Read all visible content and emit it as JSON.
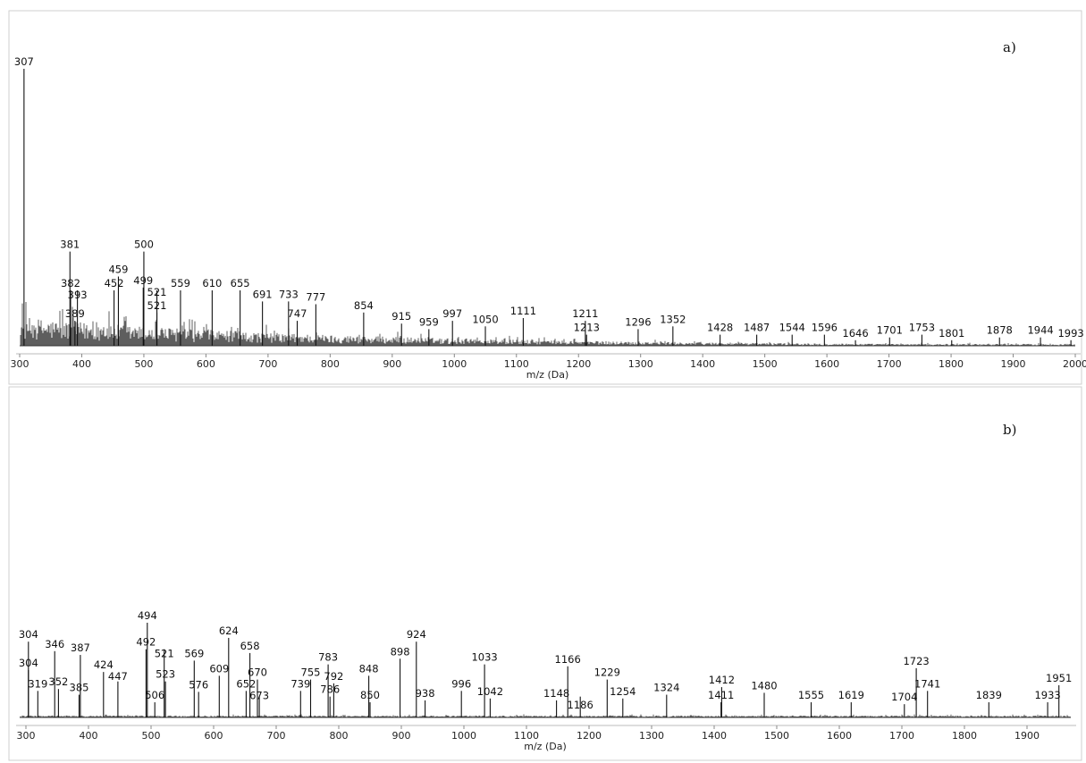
{
  "chart_data": [
    {
      "type": "bar",
      "panel_label": "a)",
      "xlabel": "m/z (Da)",
      "ylabel": "",
      "xlim": [
        300,
        2000
      ],
      "ylim": [
        0,
        100
      ],
      "xticks": [
        300,
        400,
        500,
        600,
        700,
        800,
        900,
        1000,
        1100,
        1200,
        1300,
        1400,
        1500,
        1600,
        1700,
        1800,
        1900,
        2000
      ],
      "tick_labels": [
        "300",
        "400",
        "500",
        "600",
        "700",
        "800",
        "900",
        "1000",
        "1100",
        "1200",
        "1300",
        "1400",
        "1500",
        "1600",
        "1700",
        "1800",
        "1900",
        "2000"
      ],
      "peaks": [
        {
          "mz": 307,
          "y": 100,
          "label": "307"
        },
        {
          "mz": 381,
          "y": 34,
          "label": "381"
        },
        {
          "mz": 382,
          "y": 20,
          "label": "382"
        },
        {
          "mz": 389,
          "y": 9,
          "label": "389"
        },
        {
          "mz": 393,
          "y": 20,
          "label": "393"
        },
        {
          "mz": 452,
          "y": 20,
          "label": "452"
        },
        {
          "mz": 459,
          "y": 25,
          "label": "459"
        },
        {
          "mz": 499,
          "y": 21,
          "label": "499"
        },
        {
          "mz": 500,
          "y": 34,
          "label": "500"
        },
        {
          "mz": 521,
          "y": 20,
          "label": "521"
        },
        {
          "mz": 521,
          "y": 12,
          "label": "521"
        },
        {
          "mz": 559,
          "y": 20,
          "label": "559"
        },
        {
          "mz": 610,
          "y": 20,
          "label": "610"
        },
        {
          "mz": 655,
          "y": 20,
          "label": "655"
        },
        {
          "mz": 691,
          "y": 16,
          "label": "691"
        },
        {
          "mz": 733,
          "y": 16,
          "label": "733"
        },
        {
          "mz": 747,
          "y": 9,
          "label": "747"
        },
        {
          "mz": 777,
          "y": 15,
          "label": "777"
        },
        {
          "mz": 854,
          "y": 12,
          "label": "854"
        },
        {
          "mz": 915,
          "y": 8,
          "label": "915"
        },
        {
          "mz": 959,
          "y": 6,
          "label": "959"
        },
        {
          "mz": 997,
          "y": 9,
          "label": "997"
        },
        {
          "mz": 1050,
          "y": 7,
          "label": "1050"
        },
        {
          "mz": 1111,
          "y": 10,
          "label": "1111"
        },
        {
          "mz": 1211,
          "y": 9,
          "label": "1211"
        },
        {
          "mz": 1213,
          "y": 4,
          "label": "1213"
        },
        {
          "mz": 1296,
          "y": 6,
          "label": "1296"
        },
        {
          "mz": 1352,
          "y": 7,
          "label": "1352"
        },
        {
          "mz": 1428,
          "y": 4,
          "label": "1428"
        },
        {
          "mz": 1487,
          "y": 4,
          "label": "1487"
        },
        {
          "mz": 1544,
          "y": 4,
          "label": "1544"
        },
        {
          "mz": 1596,
          "y": 4,
          "label": "1596"
        },
        {
          "mz": 1646,
          "y": 2,
          "label": "1646"
        },
        {
          "mz": 1701,
          "y": 3,
          "label": "1701"
        },
        {
          "mz": 1753,
          "y": 4,
          "label": "1753"
        },
        {
          "mz": 1801,
          "y": 2,
          "label": "1801"
        },
        {
          "mz": 1878,
          "y": 3,
          "label": "1878"
        },
        {
          "mz": 1944,
          "y": 3,
          "label": "1944"
        },
        {
          "mz": 1993,
          "y": 2,
          "label": "1993"
        }
      ]
    },
    {
      "type": "bar",
      "panel_label": "b)",
      "xlabel": "m/z (Da)",
      "ylabel": "",
      "xlim": [
        290,
        1970
      ],
      "ylim": [
        0,
        100
      ],
      "xticks": [
        300,
        400,
        500,
        600,
        700,
        800,
        900,
        1000,
        1100,
        1200,
        1300,
        1400,
        1500,
        1600,
        1700,
        1800,
        1900
      ],
      "tick_labels": [
        "300",
        "400",
        "500",
        "600",
        "700",
        "800",
        "900",
        "1000",
        "1100",
        "1200",
        "1300",
        "1400",
        "1500",
        "1600",
        "1700",
        "1800",
        "1900"
      ],
      "peaks": [
        {
          "mz": 304,
          "y": 80,
          "label": "304"
        },
        {
          "mz": 304,
          "y": 50,
          "label": "304"
        },
        {
          "mz": 319,
          "y": 28,
          "label": "319"
        },
        {
          "mz": 346,
          "y": 70,
          "label": "346"
        },
        {
          "mz": 352,
          "y": 30,
          "label": "352"
        },
        {
          "mz": 385,
          "y": 24,
          "label": "385"
        },
        {
          "mz": 387,
          "y": 66,
          "label": "387"
        },
        {
          "mz": 424,
          "y": 48,
          "label": "424"
        },
        {
          "mz": 447,
          "y": 38,
          "label": "447"
        },
        {
          "mz": 492,
          "y": 72,
          "label": "492"
        },
        {
          "mz": 494,
          "y": 100,
          "label": "494"
        },
        {
          "mz": 506,
          "y": 16,
          "label": "506"
        },
        {
          "mz": 521,
          "y": 72,
          "label": "521"
        },
        {
          "mz": 523,
          "y": 38,
          "label": "523"
        },
        {
          "mz": 569,
          "y": 60,
          "label": "569"
        },
        {
          "mz": 576,
          "y": 27,
          "label": "576"
        },
        {
          "mz": 609,
          "y": 44,
          "label": "609"
        },
        {
          "mz": 624,
          "y": 84,
          "label": "624"
        },
        {
          "mz": 652,
          "y": 28,
          "label": "652"
        },
        {
          "mz": 658,
          "y": 68,
          "label": "658"
        },
        {
          "mz": 670,
          "y": 40,
          "label": "670"
        },
        {
          "mz": 673,
          "y": 22,
          "label": "673"
        },
        {
          "mz": 739,
          "y": 28,
          "label": "739"
        },
        {
          "mz": 755,
          "y": 40,
          "label": "755"
        },
        {
          "mz": 783,
          "y": 56,
          "label": "783"
        },
        {
          "mz": 786,
          "y": 22,
          "label": "786"
        },
        {
          "mz": 792,
          "y": 36,
          "label": "792"
        },
        {
          "mz": 848,
          "y": 44,
          "label": "848"
        },
        {
          "mz": 850,
          "y": 16,
          "label": "850"
        },
        {
          "mz": 898,
          "y": 62,
          "label": "898"
        },
        {
          "mz": 924,
          "y": 80,
          "label": "924"
        },
        {
          "mz": 938,
          "y": 18,
          "label": "938"
        },
        {
          "mz": 996,
          "y": 28,
          "label": "996"
        },
        {
          "mz": 1033,
          "y": 56,
          "label": "1033"
        },
        {
          "mz": 1042,
          "y": 20,
          "label": "1042"
        },
        {
          "mz": 1148,
          "y": 18,
          "label": "1148"
        },
        {
          "mz": 1166,
          "y": 54,
          "label": "1166"
        },
        {
          "mz": 1186,
          "y": 22,
          "label": "1186"
        },
        {
          "mz": 1229,
          "y": 40,
          "label": "1229"
        },
        {
          "mz": 1254,
          "y": 20,
          "label": "1254"
        },
        {
          "mz": 1324,
          "y": 24,
          "label": "1324"
        },
        {
          "mz": 1411,
          "y": 16,
          "label": "1411"
        },
        {
          "mz": 1412,
          "y": 32,
          "label": "1412"
        },
        {
          "mz": 1480,
          "y": 26,
          "label": "1480"
        },
        {
          "mz": 1555,
          "y": 16,
          "label": "1555"
        },
        {
          "mz": 1619,
          "y": 16,
          "label": "1619"
        },
        {
          "mz": 1704,
          "y": 14,
          "label": "1704"
        },
        {
          "mz": 1723,
          "y": 52,
          "label": "1723"
        },
        {
          "mz": 1741,
          "y": 28,
          "label": "1741"
        },
        {
          "mz": 1839,
          "y": 16,
          "label": "1839"
        },
        {
          "mz": 1933,
          "y": 16,
          "label": "1933"
        },
        {
          "mz": 1951,
          "y": 34,
          "label": "1951"
        }
      ]
    }
  ]
}
